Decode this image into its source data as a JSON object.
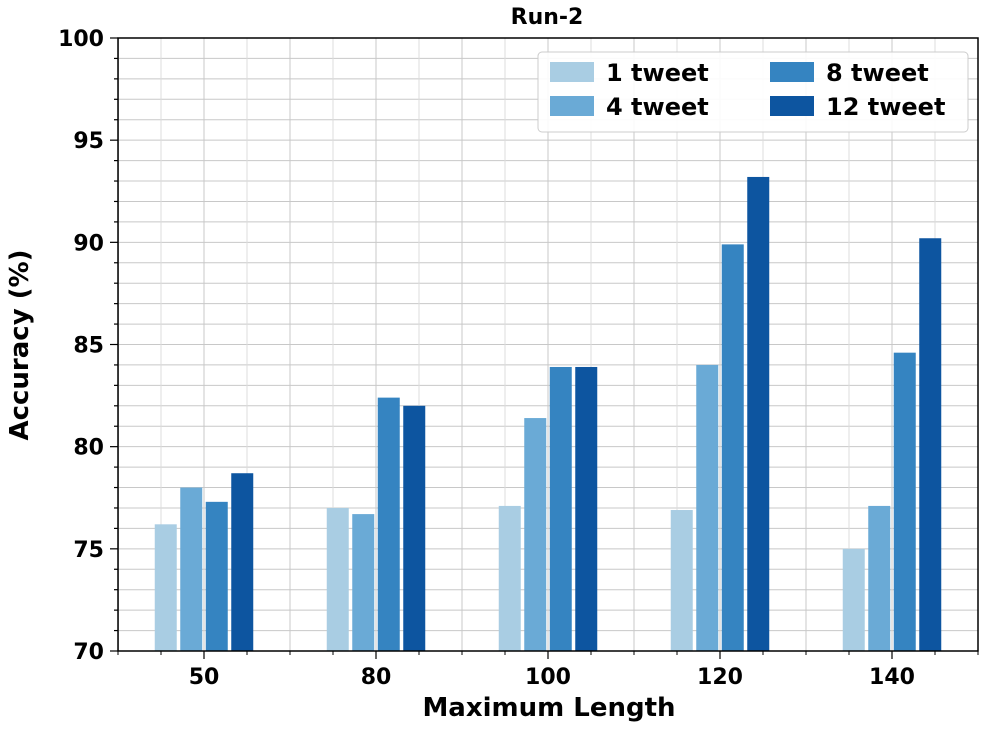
{
  "chart_data": {
    "type": "bar",
    "title": "Run-2",
    "xlabel": "Maximum Length",
    "ylabel": "Accuracy (%)",
    "categories": [
      "50",
      "80",
      "100",
      "120",
      "140"
    ],
    "ylim": [
      70,
      100
    ],
    "yticks": [
      "70",
      "75",
      "80",
      "85",
      "90",
      "95",
      "100"
    ],
    "grid": true,
    "legend_position": "top-right",
    "series": [
      {
        "name": "1 tweet",
        "color": "#a9cde3",
        "values": [
          76.2,
          77.0,
          77.1,
          76.9,
          75.0
        ]
      },
      {
        "name": "4 tweet",
        "color": "#6aaad6",
        "values": [
          78.0,
          76.7,
          81.4,
          84.0,
          77.1
        ]
      },
      {
        "name": "8 tweet",
        "color": "#3584c1",
        "values": [
          77.3,
          82.4,
          83.9,
          89.9,
          84.6
        ]
      },
      {
        "name": "12 tweet",
        "color": "#0d55a0",
        "values": [
          78.7,
          82.0,
          83.9,
          93.2,
          90.2
        ]
      }
    ]
  }
}
